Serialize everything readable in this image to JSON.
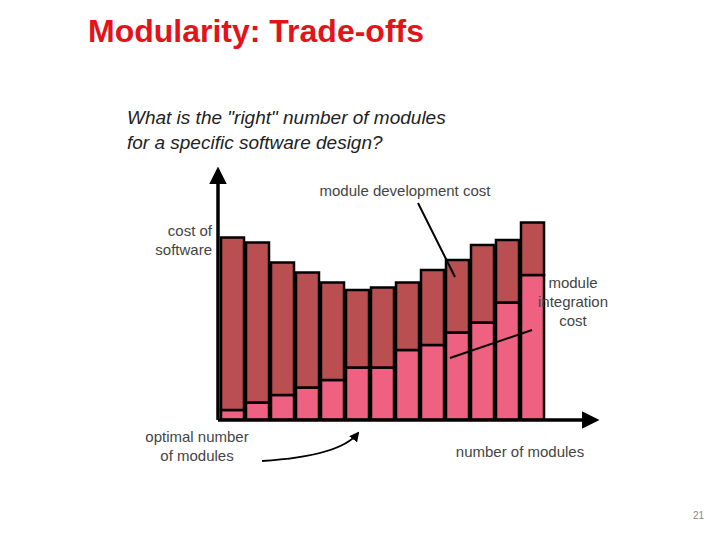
{
  "chart_data": {
    "type": "bar",
    "title": "Modularity: Trade-offs",
    "subtitle": [
      "What is the \"right\" number of modules",
      "for a specific software design?"
    ],
    "ylabel": [
      "cost of",
      "software"
    ],
    "xlabel": "number of modules",
    "annotations": [
      {
        "text": [
          "optimal number",
          "of modules"
        ]
      }
    ],
    "categories": [
      null,
      null,
      null,
      null,
      null,
      null,
      null,
      null,
      null,
      null,
      null,
      null,
      null
    ],
    "series": [
      {
        "name": "module integration cost",
        "color": "#ef6180",
        "values": [
          4,
          7,
          10,
          13,
          16,
          21,
          21,
          28,
          30,
          35,
          39,
          47,
          58
        ]
      },
      {
        "name": "module development cost",
        "color": "#b94f50",
        "values": [
          69,
          64,
          53,
          46,
          39,
          31,
          32,
          27,
          30,
          29,
          31,
          25,
          21
        ]
      }
    ],
    "stacked": true,
    "ylim": [
      0,
      100
    ],
    "tick_labels": false,
    "grid": false
  },
  "page_number": "21"
}
